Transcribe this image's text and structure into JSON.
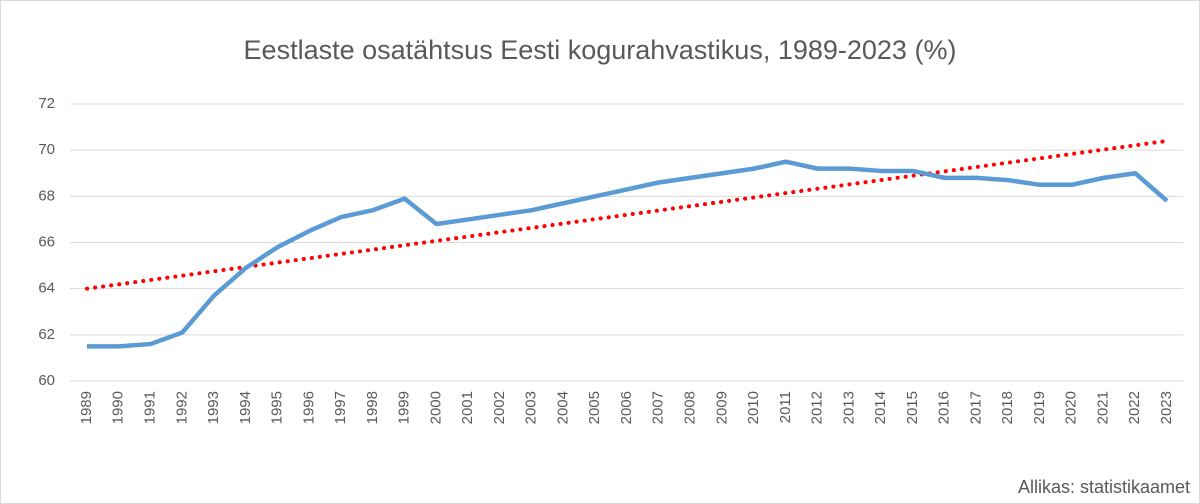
{
  "chart_data": {
    "type": "line",
    "title": "Eestlaste osatähtsus Eesti kogurahvastikus, 1989-2023 (%)",
    "source": "Allikas: statistikaamet",
    "categories": [
      "1989",
      "1990",
      "1991",
      "1992",
      "1993",
      "1994",
      "1995",
      "1996",
      "1997",
      "1998",
      "1999",
      "2000",
      "2001",
      "2002",
      "2003",
      "2004",
      "2005",
      "2006",
      "2007",
      "2008",
      "2009",
      "2010",
      "2011",
      "2012",
      "2013",
      "2014",
      "2015",
      "2016",
      "2017",
      "2018",
      "2019",
      "2020",
      "2021",
      "2022",
      "2023"
    ],
    "series": [
      {
        "color": "#5b9bd5",
        "values": [
          61.5,
          61.5,
          61.6,
          62.1,
          63.7,
          64.9,
          65.8,
          66.5,
          67.1,
          67.4,
          67.9,
          66.8,
          67.0,
          67.2,
          67.4,
          67.7,
          68.0,
          68.3,
          68.6,
          68.8,
          69.0,
          69.2,
          69.5,
          69.2,
          69.2,
          69.1,
          69.1,
          68.8,
          68.8,
          68.7,
          68.5,
          68.5,
          68.8,
          69.0,
          67.8
        ]
      }
    ],
    "trendline": {
      "color": "#ff0000",
      "start": 64.0,
      "end": 70.4
    },
    "ylim": [
      60,
      72
    ],
    "yticks": [
      60,
      62,
      64,
      66,
      68,
      70,
      72
    ],
    "grid": true
  }
}
